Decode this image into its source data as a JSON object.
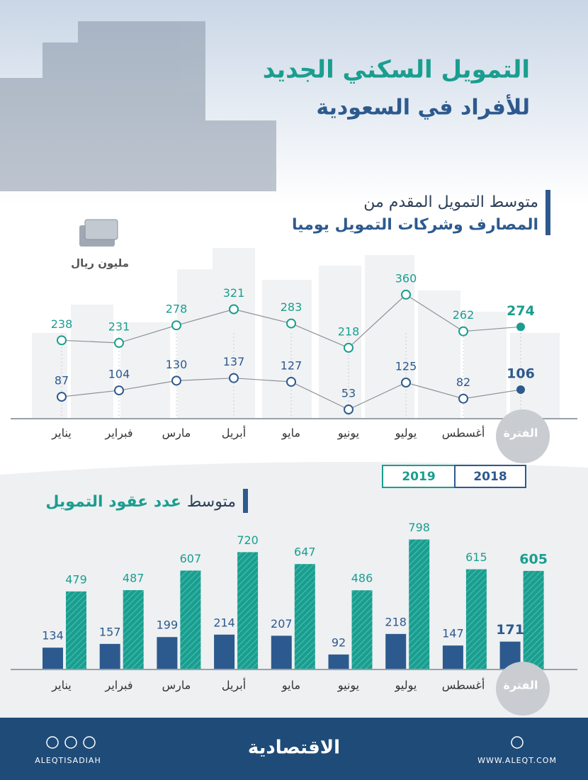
{
  "header": {
    "title_line1": "التمويل السكني الجديد",
    "title_line2": "للأفراد في السعودية"
  },
  "chart_data": [
    {
      "type": "line",
      "title_lines": [
        "متوسط التمويل المقدم من",
        "المصارف وشركات التمويل يوميا"
      ],
      "unit": "مليون ريال",
      "categories": [
        "يناير",
        "فبراير",
        "مارس",
        "أبريل",
        "مايو",
        "يونيو",
        "يوليو",
        "أغسطس",
        "الفترة"
      ],
      "series": [
        {
          "color": "#1a9e8f",
          "values": [
            238,
            231,
            278,
            321,
            283,
            218,
            360,
            262,
            274
          ]
        },
        {
          "color": "#2d5a8e",
          "values": [
            87,
            104,
            130,
            137,
            127,
            53,
            125,
            82,
            106
          ]
        }
      ]
    },
    {
      "type": "bar",
      "title": "متوسط",
      "title_bold": "عدد عقود التمويل",
      "categories": [
        "يناير",
        "فبراير",
        "مارس",
        "أبريل",
        "مايو",
        "يونيو",
        "يوليو",
        "أغسطس",
        "الفترة"
      ],
      "series": [
        {
          "name": "2018",
          "color": "#2d5a8e",
          "values": [
            134,
            157,
            199,
            214,
            207,
            92,
            218,
            147,
            171
          ]
        },
        {
          "name": "2019",
          "color": "#1a9e8f",
          "values": [
            479,
            487,
            607,
            720,
            647,
            486,
            798,
            615,
            605
          ]
        }
      ]
    }
  ],
  "footer": {
    "brand": "الاقتصادية",
    "social": "ALEQTISADIAH",
    "website": "WWW.ALEQT.COM"
  }
}
